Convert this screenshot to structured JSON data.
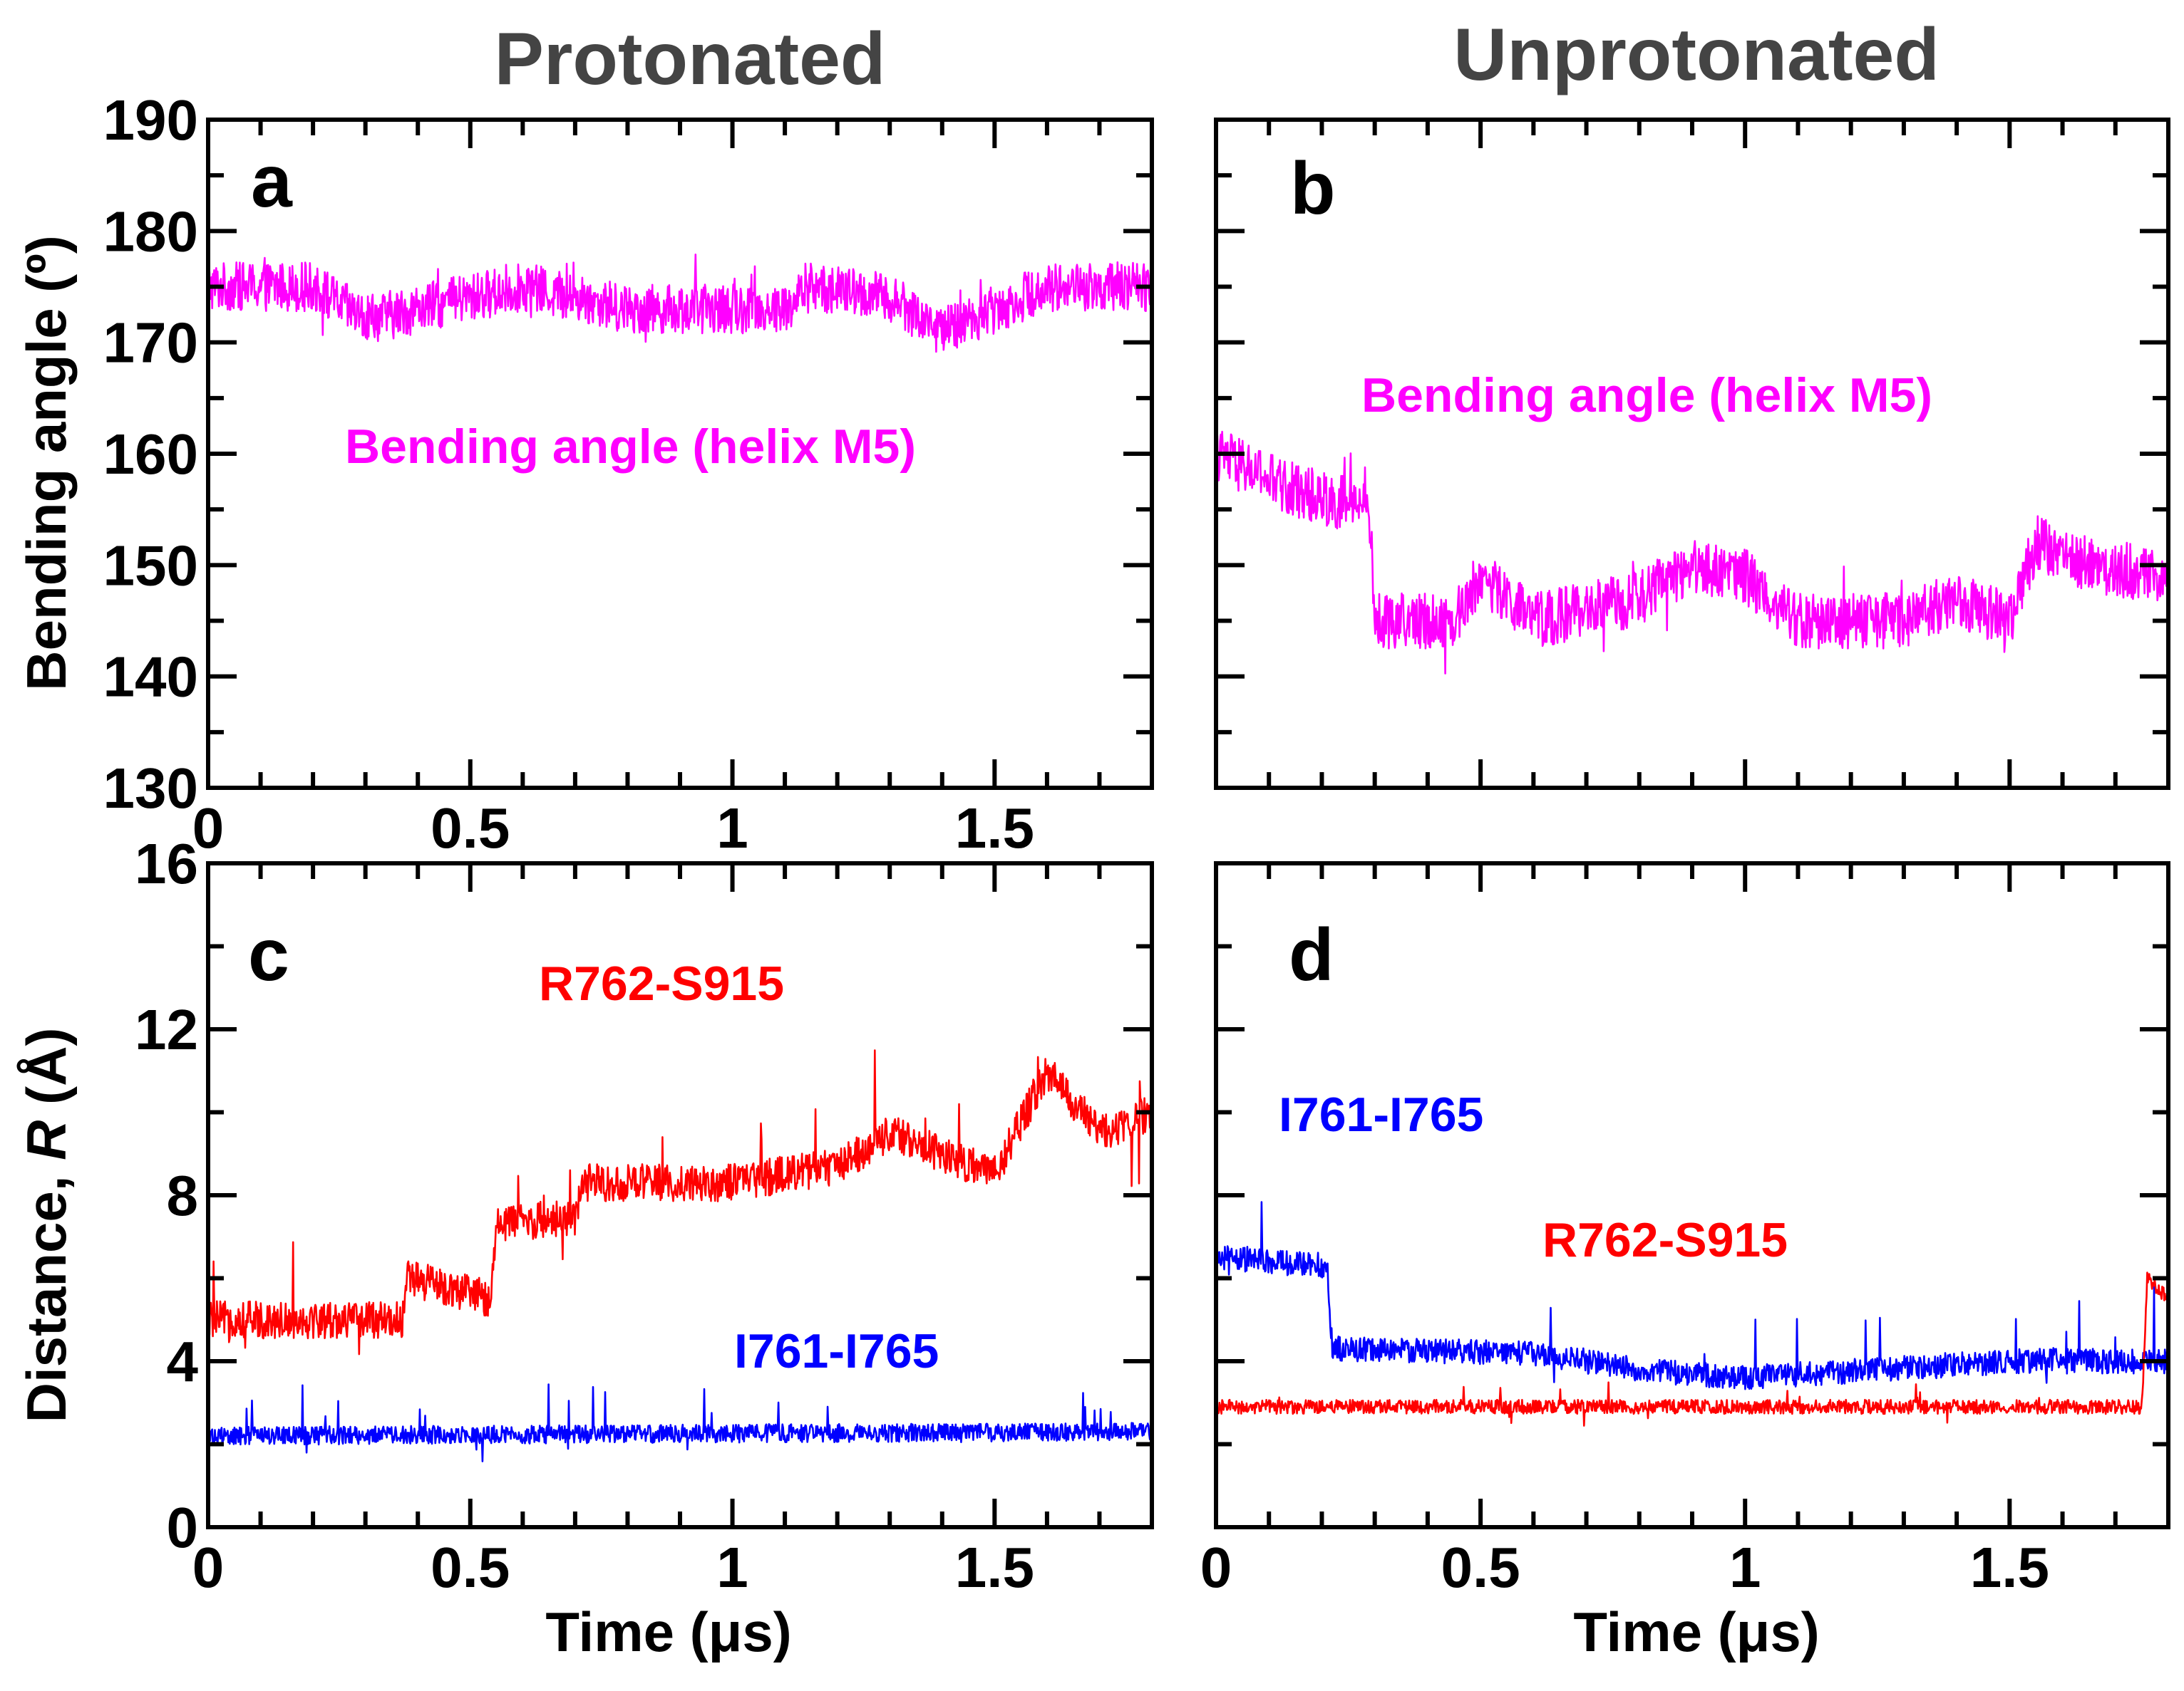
{
  "titles": {
    "left": "Protonated",
    "right": "Unprotonated"
  },
  "axis_labels": {
    "top_y": "Bending angle (º)",
    "bottom_y_prefix": "Distance, ",
    "bottom_y_var": "R",
    "bottom_y_suffix": " (Å)",
    "x": "Time (μs)"
  },
  "colors": {
    "magenta": "#ff00ff",
    "red": "#ff0000",
    "blue": "#0000ff"
  },
  "chart_data": [
    {
      "panel": "a",
      "type": "line",
      "column": "Protonated",
      "xlim": [
        0,
        1.8
      ],
      "ylim": [
        130,
        190
      ],
      "xticks": [
        "0",
        "0.5",
        "1",
        "1.5"
      ],
      "yticks": [
        "130",
        "140",
        "150",
        "160",
        "170",
        "180",
        "190"
      ],
      "series": [
        {
          "name": "Bending angle (helix M5)",
          "color": "#ff00ff",
          "noise": 2.2,
          "spike": 3,
          "segments": [
            [
              0,
              175
            ],
            [
              0.2,
              175
            ],
            [
              0.3,
              172
            ],
            [
              0.6,
              175
            ],
            [
              0.8,
              173
            ],
            [
              1.1,
              173
            ],
            [
              1.15,
              175
            ],
            [
              1.3,
              174
            ],
            [
              1.4,
              171
            ],
            [
              1.5,
              173
            ],
            [
              1.6,
              175
            ],
            [
              1.8,
              175
            ]
          ]
        }
      ],
      "annotations": [
        {
          "text": "Bending angle (helix M5)",
          "color": "#ff00ff"
        }
      ]
    },
    {
      "panel": "b",
      "type": "line",
      "column": "Unprotonated",
      "xlim": [
        0,
        1.8
      ],
      "ylim": [
        130,
        190
      ],
      "xticks": [],
      "yticks": [],
      "series": [
        {
          "name": "Bending angle (helix M5)",
          "color": "#ff00ff",
          "noise": 2.5,
          "spike": 4,
          "segments": [
            [
              0,
              160
            ],
            [
              0.13,
              157
            ],
            [
              0.29,
              155
            ],
            [
              0.3,
              145
            ],
            [
              0.45,
              145
            ],
            [
              0.5,
              149
            ],
            [
              0.6,
              145
            ],
            [
              0.8,
              147
            ],
            [
              0.9,
              150
            ],
            [
              1.0,
              149
            ],
            [
              1.1,
              145
            ],
            [
              1.2,
              145
            ],
            [
              1.3,
              145
            ],
            [
              1.4,
              147
            ],
            [
              1.5,
              145
            ],
            [
              1.55,
              152
            ],
            [
              1.65,
              150
            ],
            [
              1.8,
              149
            ]
          ]
        }
      ],
      "annotations": [
        {
          "text": "Bending angle (helix M5)",
          "color": "#ff00ff"
        }
      ]
    },
    {
      "panel": "c",
      "type": "line",
      "column": "Protonated",
      "xlim": [
        0,
        1.8
      ],
      "ylim": [
        0,
        16
      ],
      "xticks": [
        "0",
        "0.5",
        "1",
        "1.5"
      ],
      "yticks": [
        "0",
        "4",
        "8",
        "12",
        "16"
      ],
      "series": [
        {
          "name": "R762-S915",
          "color": "#ff0000",
          "noise": 0.45,
          "spike": 1.8,
          "segments": [
            [
              0,
              5.0
            ],
            [
              0.37,
              5.0
            ],
            [
              0.38,
              6.0
            ],
            [
              0.54,
              5.5
            ],
            [
              0.55,
              7.3
            ],
            [
              0.7,
              7.5
            ],
            [
              0.72,
              8.3
            ],
            [
              1.0,
              8.3
            ],
            [
              1.2,
              8.7
            ],
            [
              1.3,
              9.5
            ],
            [
              1.5,
              8.5
            ],
            [
              1.6,
              11.0
            ],
            [
              1.7,
              9.5
            ],
            [
              1.8,
              10.0
            ]
          ]
        },
        {
          "name": "I761-I765",
          "color": "#0000ff",
          "noise": 0.22,
          "spike": 0.9,
          "segments": [
            [
              0,
              2.2
            ],
            [
              1.8,
              2.3
            ]
          ]
        }
      ],
      "annotations": [
        {
          "text": "R762-S915",
          "color": "#ff0000"
        },
        {
          "text": "I761-I765",
          "color": "#0000ff"
        }
      ]
    },
    {
      "panel": "d",
      "type": "line",
      "column": "Unprotonated",
      "xlim": [
        0,
        1.8
      ],
      "ylim": [
        0,
        16
      ],
      "xticks": [
        "0",
        "0.5",
        "1",
        "1.5"
      ],
      "yticks": [],
      "series": [
        {
          "name": "I761-I765",
          "color": "#0000ff",
          "noise": 0.3,
          "spike": 1.3,
          "segments": [
            [
              0,
              6.5
            ],
            [
              0.21,
              6.3
            ],
            [
              0.22,
              4.3
            ],
            [
              0.6,
              4.2
            ],
            [
              0.8,
              3.8
            ],
            [
              1.0,
              3.6
            ],
            [
              1.5,
              4.0
            ],
            [
              1.8,
              4.0
            ]
          ]
        },
        {
          "name": "R762-S915",
          "color": "#ff0000",
          "noise": 0.17,
          "spike": 0.5,
          "segments": [
            [
              0,
              2.9
            ],
            [
              1.75,
              2.9
            ],
            [
              1.76,
              6.0
            ],
            [
              1.8,
              5.5
            ]
          ]
        }
      ],
      "annotations": [
        {
          "text": "I761-I765",
          "color": "#0000ff"
        },
        {
          "text": "R762-S915",
          "color": "#ff0000"
        }
      ]
    }
  ]
}
